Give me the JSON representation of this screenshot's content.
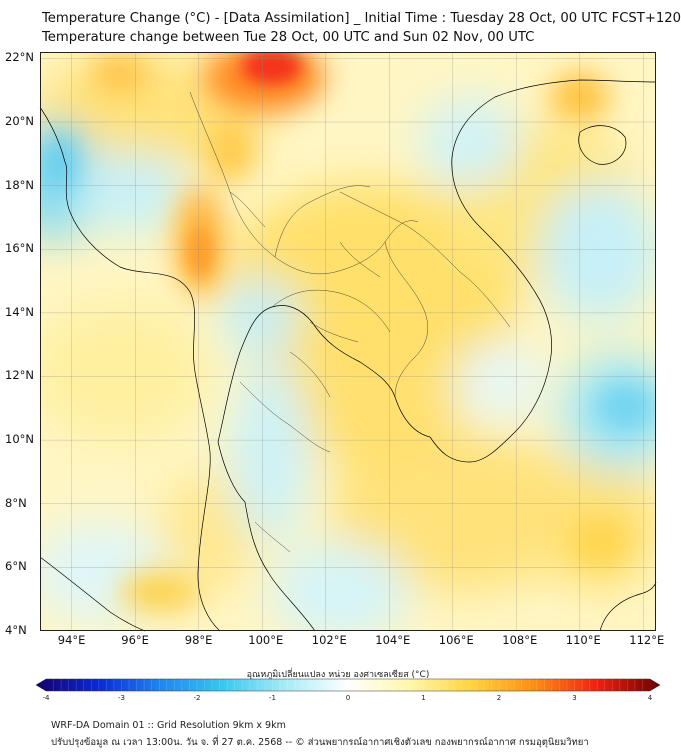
{
  "header": {
    "line1": "Temperature Change (°C) - [Data Assimilation] _ Initial Time : Tuesday 28 Oct, 00 UTC FCST+120",
    "line2": "Temperature change between Tue 28 Oct, 00 UTC and Sun 02 Nov, 00 UTC"
  },
  "map": {
    "lat_labels": [
      "22°N",
      "20°N",
      "18°N",
      "16°N",
      "14°N",
      "12°N",
      "10°N",
      "8°N",
      "6°N",
      "4°N"
    ],
    "lon_labels": [
      "94°E",
      "96°E",
      "98°E",
      "100°E",
      "102°E",
      "104°E",
      "106°E",
      "108°E",
      "110°E",
      "112°E"
    ],
    "lat_range": [
      4,
      22.2
    ],
    "lon_range": [
      93,
      112.4
    ]
  },
  "colorbar": {
    "title": "อุณหภูมิเปลี่ยนแปลง หน่วย องศาเซลเซียส (°C)",
    "ticks": [
      "-4",
      "-3",
      "-2",
      "-1",
      "0",
      "1",
      "2",
      "3",
      "4"
    ],
    "range": [
      -4,
      4
    ],
    "stops": [
      "#16006a",
      "#0b28d6",
      "#1f86f0",
      "#37c8ee",
      "#a8ecf6",
      "#ffffff",
      "#fff7a8",
      "#ffd23c",
      "#ff8c12",
      "#ef2010",
      "#6e0000"
    ]
  },
  "footer": {
    "line1": "WRF-DA Domain 01 :: Grid Resolution 9km x 9km",
    "line2": "ปรับปรุงข้อมูล ณ เวลา 13:00น. วัน จ. ที่ 27 ต.ค. 2568 -- © ส่วนพยากรณ์อากาศเชิงตัวเลข กองพยากรณ์อากาศ กรมอุตุนิยมวิทยา"
  }
}
